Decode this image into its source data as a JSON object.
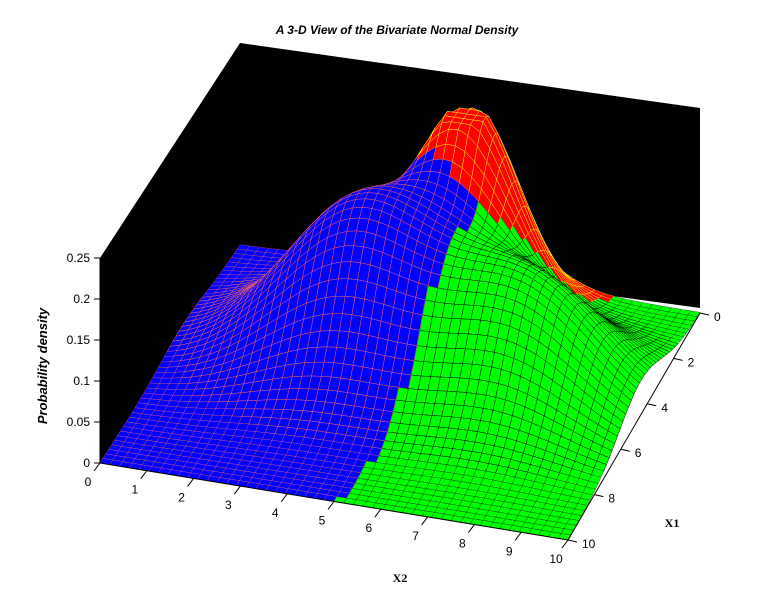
{
  "chart_data": {
    "type": "surface",
    "title": "A 3-D View of the Bivariate Normal Density",
    "xlabel": "X2",
    "ylabel": "X1",
    "zlabel": "Probability density",
    "x_ticks": [
      "0",
      "1",
      "2",
      "3",
      "4",
      "5",
      "6",
      "7",
      "8",
      "9",
      "10"
    ],
    "y_ticks": [
      "0",
      "2",
      "4",
      "6",
      "8",
      "10"
    ],
    "z_ticks": [
      "0",
      "0.05",
      "0.1",
      "0.15",
      "0.2",
      "0.25"
    ],
    "xlim": [
      0,
      10
    ],
    "ylim": [
      0,
      10
    ],
    "zlim": [
      0,
      0.25
    ],
    "components": [
      {
        "color": "#0000ff",
        "edge_color": "#ff6060",
        "mean_x2": 3.8,
        "mean_x1": 4.0,
        "peak_density": 0.19,
        "spread": 1.6
      },
      {
        "color": "#ff0000",
        "edge_color": "#ffff00",
        "mean_x2": 5.5,
        "mean_x1": 1.5,
        "peak_density": 0.22,
        "spread": 1.0
      },
      {
        "color": "#00ff00",
        "edge_color": "#000000",
        "mean_x2": 7.5,
        "mean_x1": 4.5,
        "peak_density": 0.14,
        "spread": 1.6
      }
    ],
    "background_panels": "black",
    "grid": false
  }
}
